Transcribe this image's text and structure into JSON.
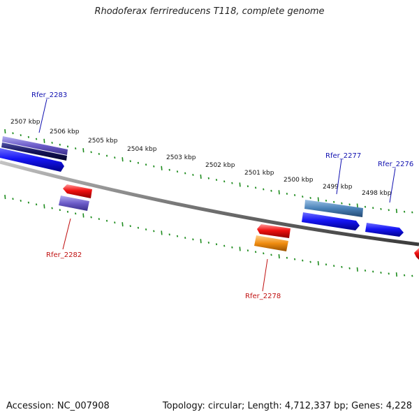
{
  "title": "Rhodoferax ferrireducens T118, complete genome",
  "footer": {
    "accession": "Accession: NC_007908",
    "summary": "Topology: circular; Length: 4,712,337 bp; Genes: 4,228"
  },
  "colors": {
    "forward_label": "#1010b0",
    "reverse_label": "#c01010",
    "backbone": "#7a7a7a",
    "ticks": "#1e8c1e"
  },
  "scale_labels": [
    "2507 kbp",
    "2506 kbp",
    "2505 kbp",
    "2504 kbp",
    "2503 kbp",
    "2502 kbp",
    "2501 kbp",
    "2500 kbp",
    "2499 kbp",
    "2498 kbp"
  ],
  "gene_labels": {
    "forward": [
      "Rfer_2283",
      "Rfer_2277",
      "Rfer_2276"
    ],
    "reverse": [
      "Rfer_2282",
      "Rfer_2278"
    ]
  }
}
